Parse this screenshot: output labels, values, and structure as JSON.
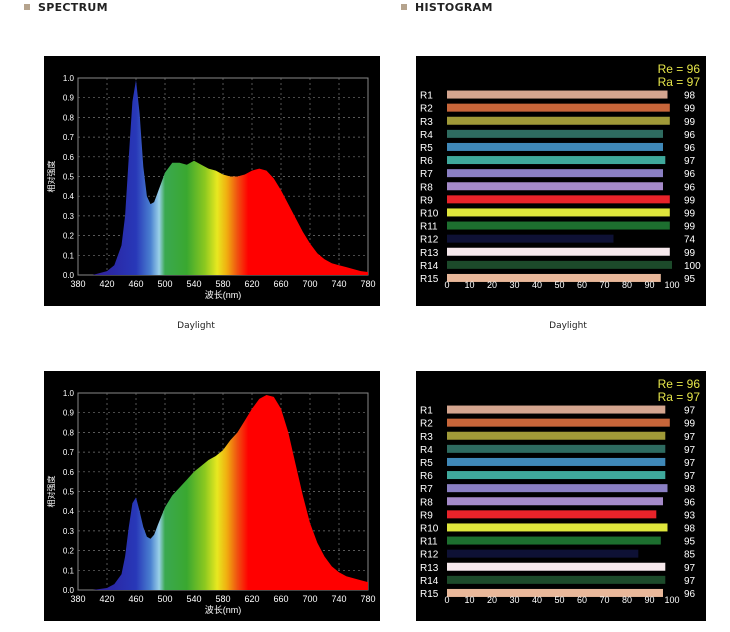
{
  "headers": {
    "spectrum": "SPECTRUM",
    "histogram": "HISTOGRAM"
  },
  "colors": {
    "bullet": "#b5a38d"
  },
  "charts": [
    {
      "caption": "Daylight",
      "spectrum": {
        "type": "area",
        "xlabel": "波长(nm)",
        "ylabel": "相对强度",
        "xlim": [
          380,
          780
        ],
        "ylim": [
          0,
          1.0
        ],
        "xticks": [
          "380",
          "420",
          "460",
          "500",
          "540",
          "580",
          "620",
          "660",
          "700",
          "740",
          "780"
        ],
        "yticks": [
          "0.0",
          "0.1",
          "0.2",
          "0.3",
          "0.4",
          "0.5",
          "0.6",
          "0.7",
          "0.8",
          "0.9",
          "1.0"
        ],
        "grid": true,
        "x": [
          380,
          400,
          420,
          430,
          440,
          445,
          450,
          455,
          460,
          465,
          470,
          475,
          480,
          485,
          490,
          500,
          510,
          520,
          530,
          540,
          550,
          560,
          570,
          580,
          590,
          600,
          610,
          620,
          630,
          640,
          650,
          660,
          670,
          680,
          690,
          700,
          710,
          720,
          730,
          740,
          750,
          760,
          770,
          780
        ],
        "y": [
          0.0,
          0.0,
          0.02,
          0.05,
          0.15,
          0.3,
          0.6,
          0.88,
          0.99,
          0.82,
          0.55,
          0.4,
          0.36,
          0.37,
          0.42,
          0.52,
          0.57,
          0.57,
          0.56,
          0.58,
          0.56,
          0.54,
          0.53,
          0.51,
          0.5,
          0.5,
          0.51,
          0.53,
          0.54,
          0.53,
          0.49,
          0.43,
          0.36,
          0.29,
          0.22,
          0.16,
          0.11,
          0.08,
          0.06,
          0.05,
          0.04,
          0.03,
          0.02,
          0.015
        ]
      },
      "histogram": {
        "type": "bar",
        "re": "Re = 96",
        "ra": "Ra = 97",
        "xticks": [
          "0",
          "10",
          "20",
          "30",
          "40",
          "50",
          "60",
          "70",
          "80",
          "90",
          "100"
        ],
        "categories": [
          "R1",
          "R2",
          "R3",
          "R4",
          "R5",
          "R6",
          "R7",
          "R8",
          "R9",
          "R10",
          "R11",
          "R12",
          "R13",
          "R14",
          "R15"
        ],
        "values": [
          98,
          99,
          99,
          96,
          96,
          97,
          96,
          96,
          99,
          99,
          99,
          74,
          99,
          100,
          95
        ],
        "labels": [
          "98",
          "99",
          "99",
          "96",
          "96",
          "97",
          "96",
          "96",
          "99",
          "99",
          "99",
          "74",
          "99",
          "100",
          "95"
        ],
        "colors": [
          "#d4a58f",
          "#c8663a",
          "#a09a38",
          "#2e6b60",
          "#3f88b8",
          "#3fa99c",
          "#8a7fc3",
          "#a58ac9",
          "#e8232a",
          "#dfe63c",
          "#1d6f2f",
          "#0e1135",
          "#f6e8ec",
          "#1c4a2a",
          "#e9b89a"
        ]
      }
    },
    {
      "caption": "",
      "spectrum": {
        "type": "area",
        "xlabel": "波长(nm)",
        "ylabel": "相对强度",
        "xlim": [
          380,
          780
        ],
        "ylim": [
          0,
          1.0
        ],
        "xticks": [
          "380",
          "420",
          "460",
          "500",
          "540",
          "580",
          "620",
          "660",
          "700",
          "740",
          "780"
        ],
        "yticks": [
          "0.0",
          "0.1",
          "0.2",
          "0.3",
          "0.4",
          "0.5",
          "0.6",
          "0.7",
          "0.8",
          "0.9",
          "1.0"
        ],
        "grid": true,
        "x": [
          380,
          400,
          420,
          430,
          440,
          445,
          450,
          455,
          460,
          465,
          470,
          475,
          480,
          485,
          490,
          500,
          510,
          520,
          530,
          540,
          550,
          560,
          570,
          580,
          590,
          600,
          610,
          620,
          630,
          640,
          650,
          660,
          670,
          680,
          690,
          700,
          710,
          720,
          730,
          740,
          750,
          760,
          770,
          780
        ],
        "y": [
          0.0,
          0.0,
          0.01,
          0.03,
          0.08,
          0.17,
          0.32,
          0.44,
          0.47,
          0.4,
          0.32,
          0.27,
          0.26,
          0.28,
          0.33,
          0.42,
          0.48,
          0.52,
          0.56,
          0.6,
          0.63,
          0.66,
          0.68,
          0.71,
          0.76,
          0.8,
          0.86,
          0.92,
          0.97,
          0.99,
          0.98,
          0.92,
          0.8,
          0.64,
          0.48,
          0.34,
          0.24,
          0.17,
          0.12,
          0.09,
          0.07,
          0.06,
          0.05,
          0.04
        ]
      },
      "histogram": {
        "type": "bar",
        "re": "Re = 96",
        "ra": "Ra = 97",
        "xticks": [
          "0",
          "10",
          "20",
          "30",
          "40",
          "50",
          "60",
          "70",
          "80",
          "90",
          "100"
        ],
        "categories": [
          "R1",
          "R2",
          "R3",
          "R4",
          "R5",
          "R6",
          "R7",
          "R8",
          "R9",
          "R10",
          "R11",
          "R12",
          "R13",
          "R14",
          "R15"
        ],
        "values": [
          97,
          99,
          97,
          97,
          97,
          97,
          98,
          96,
          93,
          98,
          95,
          85,
          97,
          97,
          96
        ],
        "labels": [
          "97",
          "99",
          "97",
          "97",
          "97",
          "97",
          "98",
          "96",
          "93",
          "98",
          "95",
          "85",
          "97",
          "97",
          "96"
        ],
        "colors": [
          "#d4a58f",
          "#c8663a",
          "#a09a38",
          "#2e6b60",
          "#3f88b8",
          "#3fa99c",
          "#8a7fc3",
          "#a58ac9",
          "#e8232a",
          "#dfe63c",
          "#1d6f2f",
          "#0e1135",
          "#f6e8ec",
          "#1c4a2a",
          "#e9b89a"
        ]
      }
    }
  ],
  "bottom_caption": "Daylight"
}
